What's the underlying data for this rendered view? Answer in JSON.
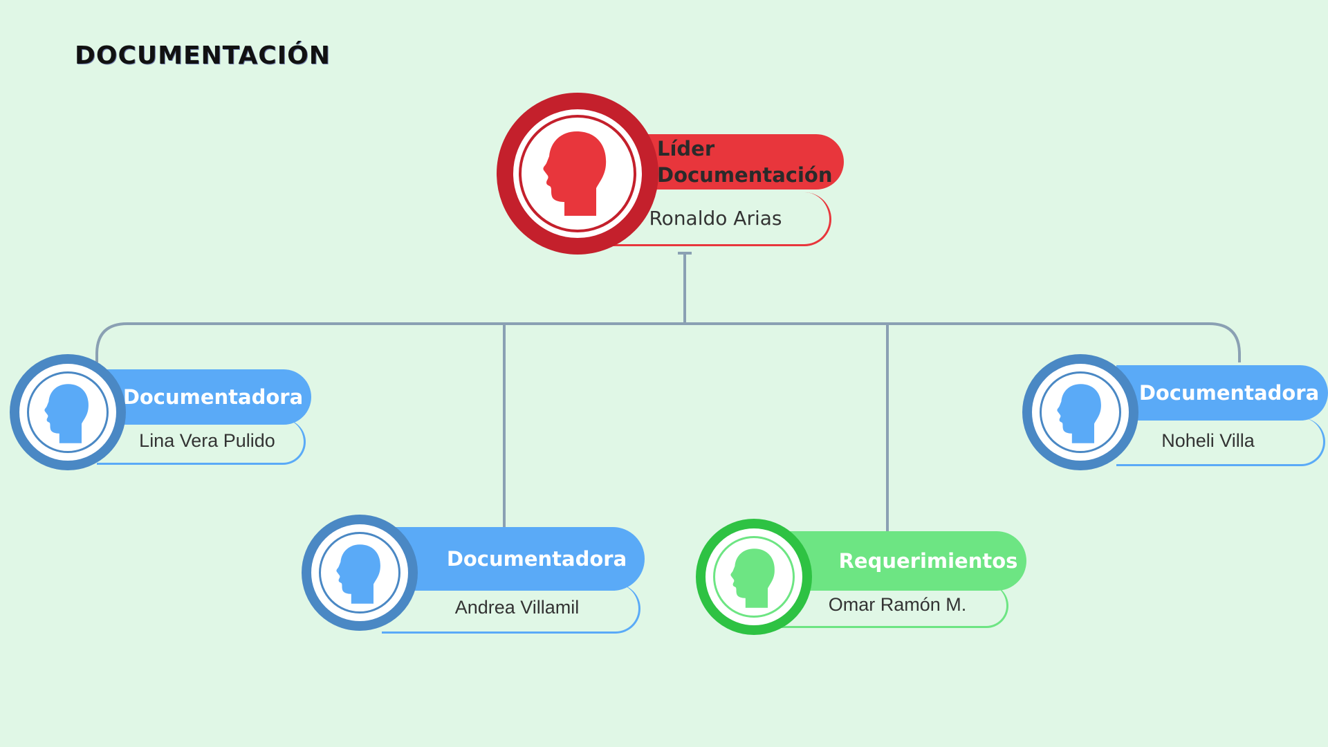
{
  "title": "DOCUMENTACIÓN",
  "colors": {
    "background": "#e0f7e6",
    "leader": "#e8363c",
    "leader_dark": "#c4202c",
    "member": "#5aaaf7",
    "member_dark": "#4a88c4",
    "requirements": "#6de583",
    "requirements_dark": "#2ec243",
    "connector": "#8aa0b3"
  },
  "nodes": {
    "leader": {
      "role_line1": "Líder",
      "role_line2": "Documentación",
      "name": "Ronaldo Arias",
      "icon": "person-head-icon"
    },
    "doc_left": {
      "role": "Documentadora",
      "name": "Lina Vera Pulido",
      "icon": "person-head-icon"
    },
    "doc_center": {
      "role": "Documentadora",
      "name": "Andrea Villamil",
      "icon": "person-head-icon"
    },
    "requirements": {
      "role": "Requerimientos",
      "name": "Omar Ramón M.",
      "icon": "person-head-icon"
    },
    "doc_right": {
      "role": "Documentadora",
      "name": "Noheli Villa",
      "icon": "person-head-icon"
    }
  }
}
